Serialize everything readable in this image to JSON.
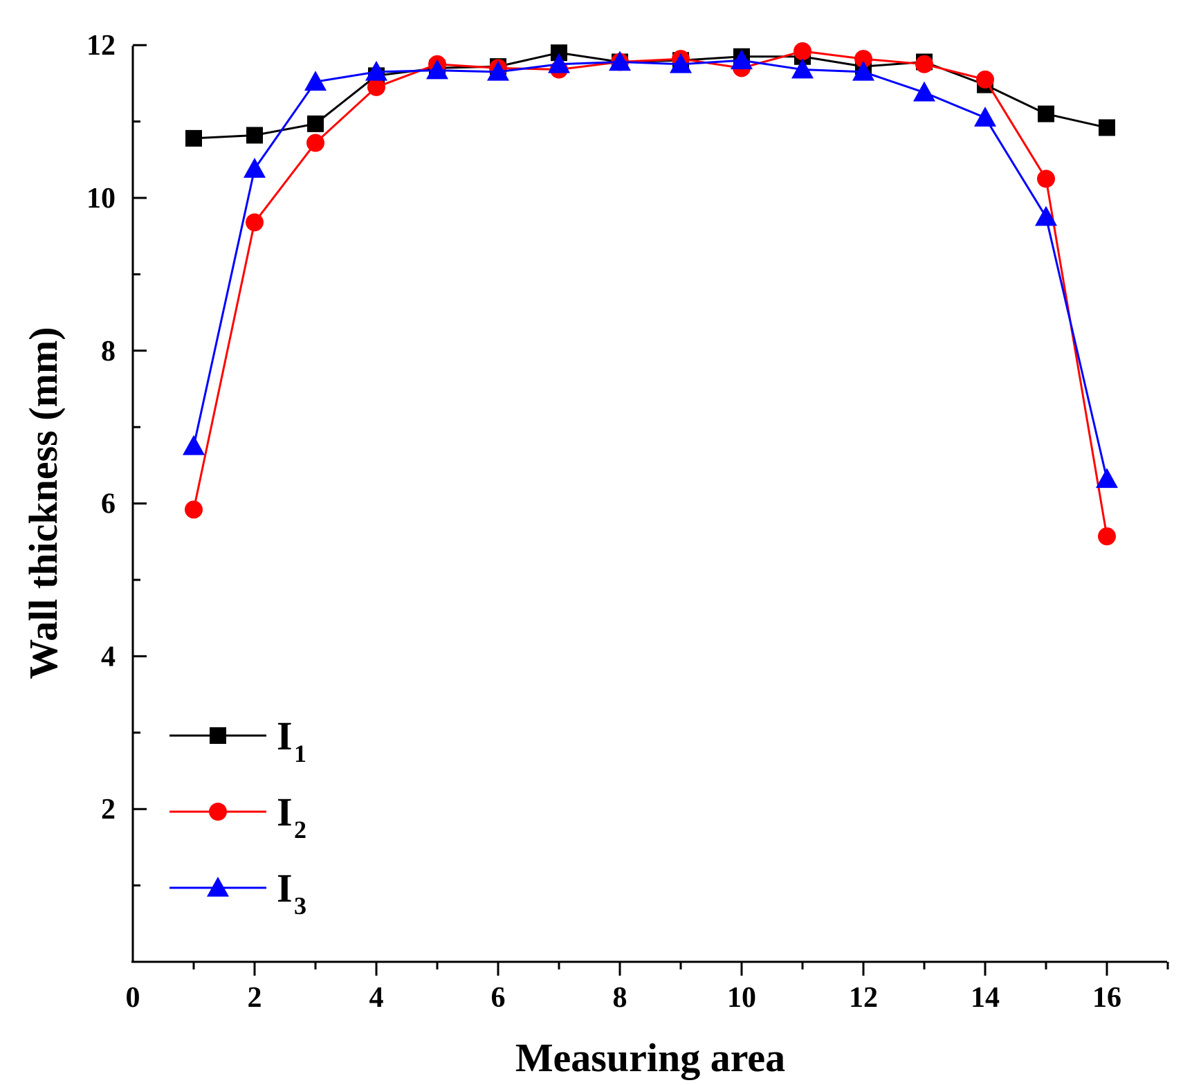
{
  "chart_data": {
    "type": "line",
    "title": "",
    "xlabel": "Measuring area",
    "ylabel": "Wall thickness (mm)",
    "xlim": [
      0,
      17
    ],
    "ylim": [
      0,
      12
    ],
    "x_ticks": [
      0,
      2,
      4,
      6,
      8,
      10,
      12,
      14,
      16
    ],
    "x_tick_labels": [
      "0",
      "2",
      "4",
      "6",
      "8",
      "10",
      "12",
      "14",
      "16"
    ],
    "y_ticks": [
      2,
      4,
      6,
      8,
      10,
      12
    ],
    "y_tick_labels": [
      "2",
      "4",
      "6",
      "8",
      "10",
      "12"
    ],
    "grid": false,
    "legend_position": "bottom-left",
    "x": [
      1,
      2,
      3,
      4,
      5,
      6,
      7,
      8,
      9,
      10,
      11,
      12,
      13,
      14,
      15,
      16
    ],
    "series": [
      {
        "name": "I",
        "subscript": "1",
        "color": "#000000",
        "marker": "square",
        "values": [
          10.78,
          10.82,
          10.97,
          11.6,
          11.7,
          11.72,
          11.9,
          11.78,
          11.8,
          11.85,
          11.85,
          11.72,
          11.78,
          11.48,
          11.1,
          10.92
        ]
      },
      {
        "name": "I",
        "subscript": "2",
        "color": "#ff0000",
        "marker": "circle",
        "values": [
          5.92,
          9.68,
          10.72,
          11.45,
          11.75,
          11.7,
          11.68,
          11.78,
          11.82,
          11.7,
          11.92,
          11.82,
          11.75,
          11.55,
          10.25,
          5.57
        ]
      },
      {
        "name": "I",
        "subscript": "3",
        "color": "#0000ff",
        "marker": "triangle",
        "values": [
          6.75,
          10.38,
          11.52,
          11.65,
          11.67,
          11.65,
          11.75,
          11.78,
          11.75,
          11.8,
          11.68,
          11.65,
          11.38,
          11.05,
          9.75,
          6.32
        ]
      }
    ]
  }
}
